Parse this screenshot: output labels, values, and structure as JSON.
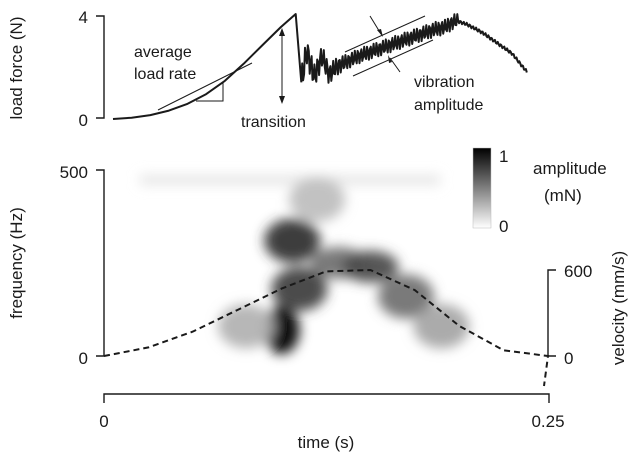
{
  "chart_data": [
    {
      "type": "line",
      "panel": "top",
      "ylabel": "load force (N)",
      "ytick_labels": [
        "4",
        "0"
      ],
      "ylim": [
        0,
        4
      ],
      "xlim": [
        0,
        0.25
      ],
      "series": [
        {
          "x": [
            0.0,
            0.01,
            0.02,
            0.03,
            0.04,
            0.05,
            0.06,
            0.07,
            0.08,
            0.09,
            0.098,
            0.101,
            0.104,
            0.108,
            0.112,
            0.116,
            0.12,
            0.126,
            0.132,
            0.14,
            0.148,
            0.156,
            0.164,
            0.172,
            0.178,
            0.184,
            0.19,
            0.198,
            0.206,
            0.214,
            0.222
          ],
          "y": [
            0.0,
            0.05,
            0.15,
            0.32,
            0.58,
            0.95,
            1.45,
            2.1,
            2.8,
            3.5,
            4.0,
            1.4,
            2.6,
            1.6,
            2.4,
            1.7,
            2.0,
            2.2,
            2.4,
            2.6,
            2.8,
            3.0,
            3.2,
            3.4,
            3.5,
            3.75,
            3.6,
            3.3,
            2.9,
            2.5,
            1.8
          ]
        }
      ],
      "annotations": {
        "load_rate": "average\nload rate",
        "transition": "transition",
        "vibration": "vibration\namplitude"
      }
    },
    {
      "type": "heatmap",
      "panel": "bottom",
      "xlabel": "time (s)",
      "ylabel": "frequency (Hz)",
      "xtick_labels": [
        "0",
        "0.25"
      ],
      "ytick_labels": [
        "500",
        "0"
      ],
      "xlim": [
        0,
        0.25
      ],
      "ylim": [
        0,
        500
      ],
      "colorbar": {
        "title": "amplitude\n(mN)",
        "tick_labels": [
          "1",
          "0"
        ],
        "range": [
          0,
          1
        ],
        "colors": [
          "#ffffff",
          "#000000"
        ]
      },
      "blobs": [
        {
          "t": 0.1,
          "f": 70,
          "amplitude": 1.0
        },
        {
          "t": 0.11,
          "f": 180,
          "amplitude": 0.75
        },
        {
          "t": 0.106,
          "f": 310,
          "amplitude": 0.8
        },
        {
          "t": 0.132,
          "f": 250,
          "amplitude": 0.55
        },
        {
          "t": 0.15,
          "f": 240,
          "amplitude": 0.7
        },
        {
          "t": 0.17,
          "f": 160,
          "amplitude": 0.55
        },
        {
          "t": 0.19,
          "f": 80,
          "amplitude": 0.35
        },
        {
          "t": 0.08,
          "f": 80,
          "amplitude": 0.3
        },
        {
          "t": 0.12,
          "f": 420,
          "amplitude": 0.25
        }
      ],
      "secondary_series": {
        "name": "velocity",
        "style": "dashed",
        "ylabel": "velocity (mm/s)",
        "ytick_labels": [
          "600",
          "0"
        ],
        "ylim": [
          0,
          600
        ],
        "x": [
          0.0,
          0.025,
          0.05,
          0.075,
          0.1,
          0.125,
          0.15,
          0.175,
          0.2,
          0.225,
          0.25
        ],
        "y": [
          0,
          60,
          170,
          320,
          470,
          590,
          600,
          460,
          210,
          40,
          0
        ]
      }
    }
  ]
}
